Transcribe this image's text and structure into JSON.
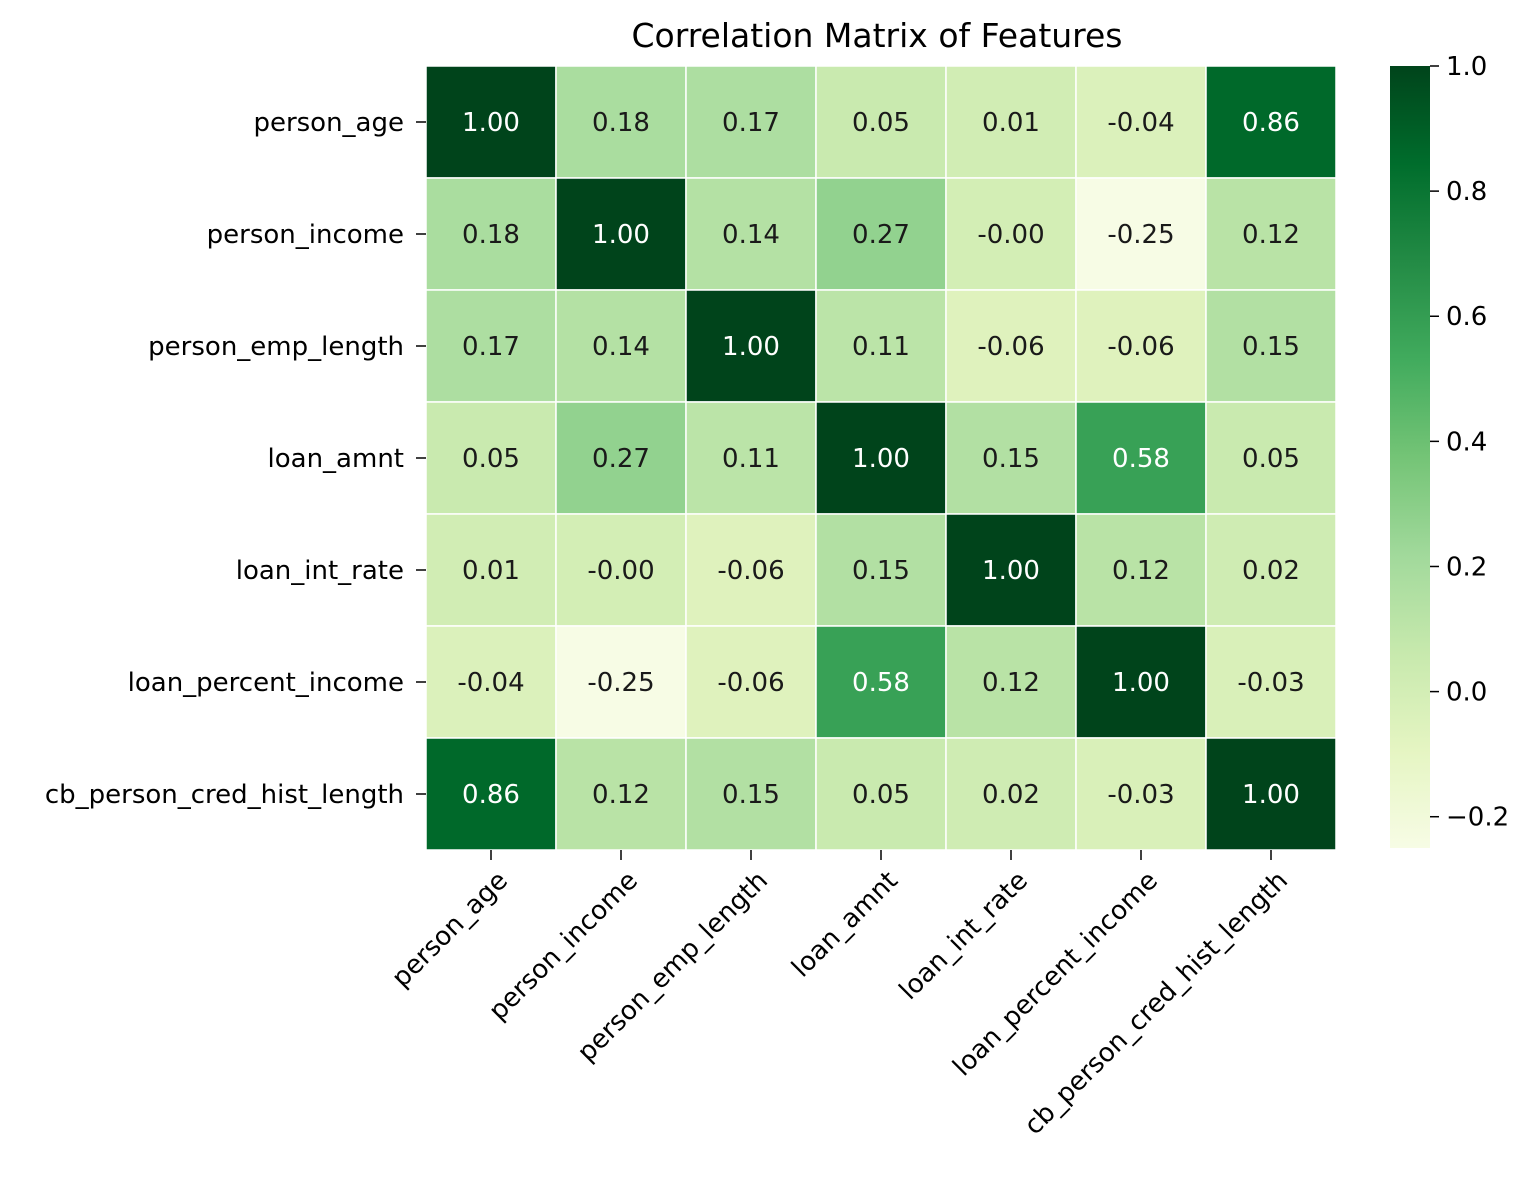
{
  "chart_data": {
    "type": "heatmap",
    "title": "Correlation Matrix of Features",
    "labels": [
      "person_age",
      "person_income",
      "person_emp_length",
      "loan_amnt",
      "loan_int_rate",
      "loan_percent_income",
      "cb_person_cred_hist_length"
    ],
    "values": [
      [
        1.0,
        0.18,
        0.17,
        0.05,
        0.01,
        -0.04,
        0.86
      ],
      [
        0.18,
        1.0,
        0.14,
        0.27,
        -0.0,
        -0.25,
        0.12
      ],
      [
        0.17,
        0.14,
        1.0,
        0.11,
        -0.06,
        -0.06,
        0.15
      ],
      [
        0.05,
        0.27,
        0.11,
        1.0,
        0.15,
        0.58,
        0.05
      ],
      [
        0.01,
        -0.0,
        -0.06,
        0.15,
        1.0,
        0.12,
        0.02
      ],
      [
        -0.04,
        -0.25,
        -0.06,
        0.58,
        0.12,
        1.0,
        -0.03
      ],
      [
        0.86,
        0.12,
        0.15,
        0.05,
        0.02,
        -0.03,
        1.0
      ]
    ],
    "value_format": "0.00",
    "colormap": "Greens",
    "color_range": [
      -0.25,
      1.0
    ],
    "colorbar": {
      "ticks": [
        1.0,
        0.8,
        0.6,
        0.4,
        0.2,
        0.0,
        -0.2
      ],
      "tick_labels": [
        "1.0",
        "0.8",
        "0.6",
        "0.4",
        "0.2",
        "0.0",
        "−0.2"
      ]
    },
    "cell_border_color": "#ffffff",
    "legend": "colorbar-right"
  }
}
